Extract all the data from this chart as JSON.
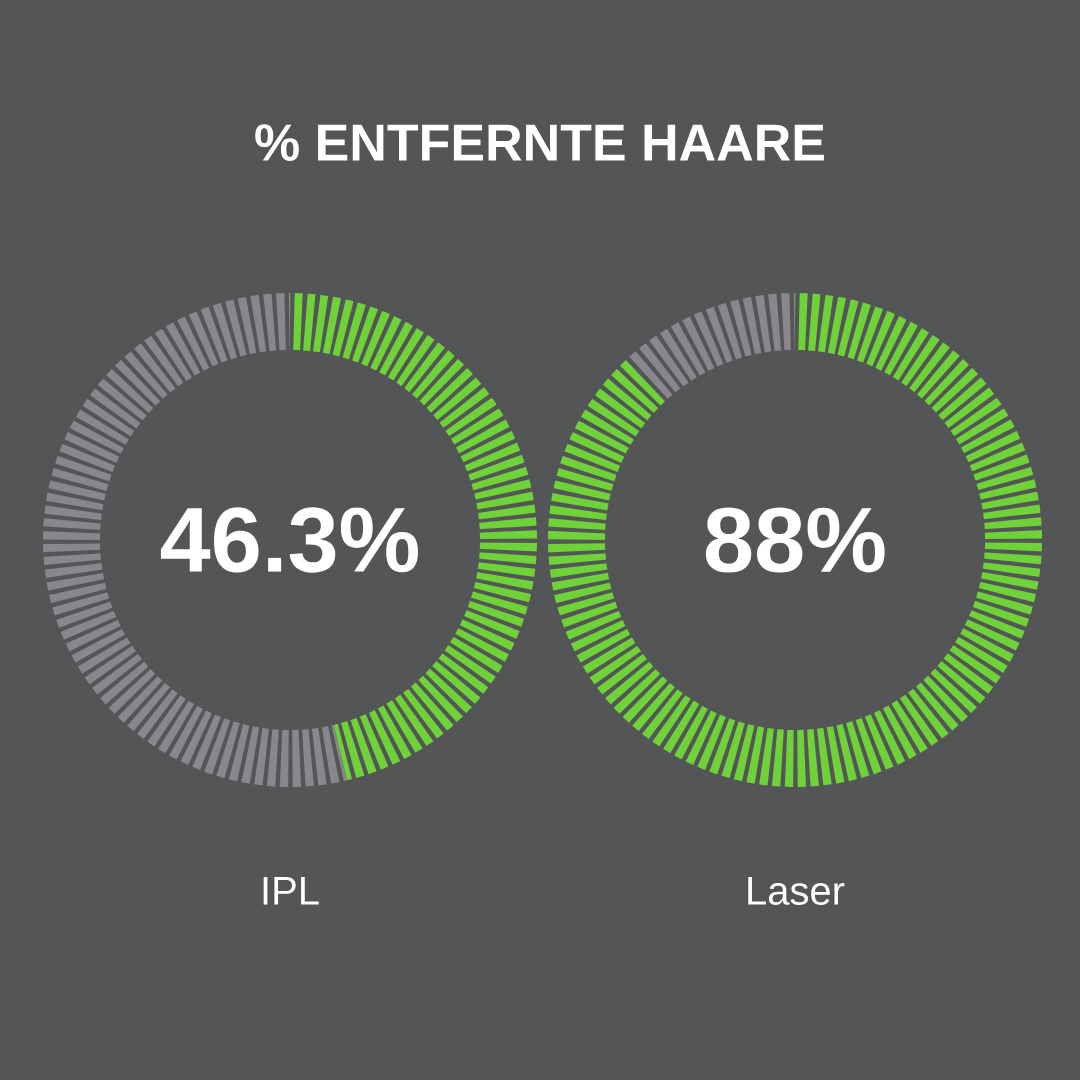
{
  "chart_data": [
    {
      "type": "donut",
      "title": "% ENTFERNTE HAARE",
      "categories": [
        null,
        null
      ],
      "values": [
        46.3,
        53.7
      ],
      "colors": [
        "#6ed238",
        "#88888c"
      ],
      "xlabel": "IPL",
      "annotations": [
        "46.3%"
      ]
    },
    {
      "type": "donut",
      "categories": [
        null,
        null
      ],
      "values": [
        88,
        12
      ],
      "colors": [
        "#6ed238",
        "#88888c"
      ],
      "xlabel": "Laser",
      "annotations": [
        "88%"
      ]
    }
  ]
}
